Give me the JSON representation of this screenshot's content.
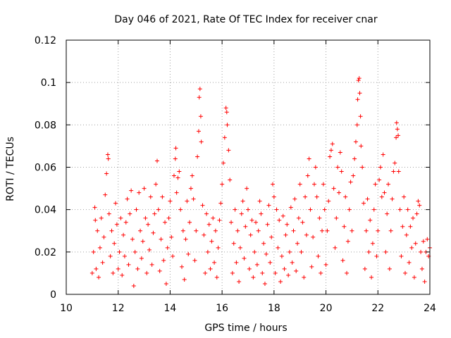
{
  "chart_data": {
    "type": "scatter",
    "title": "Day 046 of 2021, Rate Of TEC Index for receiver cnar",
    "xlabel": "GPS time / hours",
    "ylabel": "ROTI / TECUs",
    "xlim": [
      10,
      24
    ],
    "ylim": [
      0,
      0.12
    ],
    "xticks": [
      10,
      12,
      14,
      16,
      18,
      20,
      22,
      24
    ],
    "xtick_labels": [
      "10",
      "12",
      "14",
      "16",
      "18",
      "20",
      "22",
      "24"
    ],
    "yticks": [
      0,
      0.02,
      0.04,
      0.06,
      0.08,
      0.1,
      0.12
    ],
    "ytick_labels": [
      "0",
      "0.02",
      "0.04",
      "0.06",
      "0.08",
      "0.1",
      "0.12"
    ],
    "grid": true,
    "marker": "plus",
    "color": "#ff0000",
    "series": [
      {
        "points": [
          [
            11.0,
            0.01
          ],
          [
            11.05,
            0.02
          ],
          [
            11.1,
            0.041
          ],
          [
            11.12,
            0.035
          ],
          [
            11.15,
            0.012
          ],
          [
            11.2,
            0.03
          ],
          [
            11.25,
            0.008
          ],
          [
            11.3,
            0.022
          ],
          [
            11.35,
            0.036
          ],
          [
            11.4,
            0.015
          ],
          [
            11.45,
            0.027
          ],
          [
            11.5,
            0.047
          ],
          [
            11.55,
            0.057
          ],
          [
            11.6,
            0.066
          ],
          [
            11.62,
            0.064
          ],
          [
            11.65,
            0.038
          ],
          [
            11.7,
            0.018
          ],
          [
            11.75,
            0.03
          ],
          [
            11.8,
            0.01
          ],
          [
            11.85,
            0.024
          ],
          [
            11.9,
            0.043
          ],
          [
            11.95,
            0.033
          ],
          [
            12.0,
            0.012
          ],
          [
            12.05,
            0.02
          ],
          [
            12.1,
            0.036
          ],
          [
            12.15,
            0.009
          ],
          [
            12.2,
            0.028
          ],
          [
            12.25,
            0.018
          ],
          [
            12.3,
            0.034
          ],
          [
            12.35,
            0.045
          ],
          [
            12.4,
            0.014
          ],
          [
            12.45,
            0.038
          ],
          [
            12.5,
            0.049
          ],
          [
            12.55,
            0.026
          ],
          [
            12.6,
            0.004
          ],
          [
            12.65,
            0.02
          ],
          [
            12.7,
            0.04
          ],
          [
            12.75,
            0.012
          ],
          [
            12.8,
            0.048
          ],
          [
            12.85,
            0.03
          ],
          [
            12.9,
            0.017
          ],
          [
            12.95,
            0.025
          ],
          [
            13.0,
            0.05
          ],
          [
            13.05,
            0.036
          ],
          [
            13.1,
            0.01
          ],
          [
            13.15,
            0.033
          ],
          [
            13.2,
            0.021
          ],
          [
            13.25,
            0.046
          ],
          [
            13.3,
            0.014
          ],
          [
            13.35,
            0.029
          ],
          [
            13.4,
            0.038
          ],
          [
            13.45,
            0.052
          ],
          [
            13.5,
            0.063
          ],
          [
            13.55,
            0.04
          ],
          [
            13.6,
            0.011
          ],
          [
            13.65,
            0.026
          ],
          [
            13.7,
            0.046
          ],
          [
            13.75,
            0.016
          ],
          [
            13.8,
            0.034
          ],
          [
            13.85,
            0.005
          ],
          [
            13.9,
            0.022
          ],
          [
            13.95,
            0.036
          ],
          [
            14.0,
            0.044
          ],
          [
            14.05,
            0.027
          ],
          [
            14.1,
            0.018
          ],
          [
            14.15,
            0.056
          ],
          [
            14.2,
            0.064
          ],
          [
            14.22,
            0.069
          ],
          [
            14.25,
            0.048
          ],
          [
            14.3,
            0.055
          ],
          [
            14.35,
            0.058
          ],
          [
            14.4,
            0.04
          ],
          [
            14.45,
            0.013
          ],
          [
            14.5,
            0.03
          ],
          [
            14.55,
            0.007
          ],
          [
            14.6,
            0.026
          ],
          [
            14.65,
            0.044
          ],
          [
            14.7,
            0.019
          ],
          [
            14.75,
            0.034
          ],
          [
            14.8,
            0.05
          ],
          [
            14.85,
            0.056
          ],
          [
            14.9,
            0.045
          ],
          [
            14.95,
            0.016
          ],
          [
            15.0,
            0.03
          ],
          [
            15.05,
            0.065
          ],
          [
            15.1,
            0.077
          ],
          [
            15.12,
            0.093
          ],
          [
            15.15,
            0.097
          ],
          [
            15.18,
            0.084
          ],
          [
            15.2,
            0.072
          ],
          [
            15.25,
            0.042
          ],
          [
            15.3,
            0.028
          ],
          [
            15.35,
            0.01
          ],
          [
            15.4,
            0.038
          ],
          [
            15.45,
            0.02
          ],
          [
            15.5,
            0.033
          ],
          [
            15.55,
            0.012
          ],
          [
            15.6,
            0.025
          ],
          [
            15.65,
            0.036
          ],
          [
            15.7,
            0.015
          ],
          [
            15.75,
            0.03
          ],
          [
            15.8,
            0.008
          ],
          [
            15.85,
            0.022
          ],
          [
            15.9,
            0.035
          ],
          [
            15.95,
            0.043
          ],
          [
            16.0,
            0.052
          ],
          [
            16.05,
            0.062
          ],
          [
            16.1,
            0.074
          ],
          [
            16.15,
            0.088
          ],
          [
            16.18,
            0.086
          ],
          [
            16.2,
            0.08
          ],
          [
            16.25,
            0.068
          ],
          [
            16.3,
            0.054
          ],
          [
            16.35,
            0.034
          ],
          [
            16.4,
            0.01
          ],
          [
            16.45,
            0.024
          ],
          [
            16.5,
            0.04
          ],
          [
            16.55,
            0.015
          ],
          [
            16.6,
            0.03
          ],
          [
            16.65,
            0.006
          ],
          [
            16.7,
            0.022
          ],
          [
            16.75,
            0.038
          ],
          [
            16.8,
            0.044
          ],
          [
            16.85,
            0.017
          ],
          [
            16.9,
            0.032
          ],
          [
            16.95,
            0.05
          ],
          [
            17.0,
            0.04
          ],
          [
            17.05,
            0.012
          ],
          [
            17.1,
            0.028
          ],
          [
            17.15,
            0.035
          ],
          [
            17.2,
            0.008
          ],
          [
            17.25,
            0.02
          ],
          [
            17.3,
            0.034
          ],
          [
            17.35,
            0.014
          ],
          [
            17.4,
            0.03
          ],
          [
            17.45,
            0.044
          ],
          [
            17.5,
            0.038
          ],
          [
            17.55,
            0.01
          ],
          [
            17.6,
            0.024
          ],
          [
            17.65,
            0.005
          ],
          [
            17.7,
            0.019
          ],
          [
            17.75,
            0.033
          ],
          [
            17.8,
            0.042
          ],
          [
            17.85,
            0.015
          ],
          [
            17.9,
            0.027
          ],
          [
            17.95,
            0.052
          ],
          [
            18.0,
            0.046
          ],
          [
            18.05,
            0.01
          ],
          [
            18.1,
            0.04
          ],
          [
            18.15,
            0.022
          ],
          [
            18.2,
            0.035
          ],
          [
            18.25,
            0.006
          ],
          [
            18.3,
            0.018
          ],
          [
            18.35,
            0.037
          ],
          [
            18.4,
            0.012
          ],
          [
            18.45,
            0.028
          ],
          [
            18.5,
            0.033
          ],
          [
            18.55,
            0.009
          ],
          [
            18.6,
            0.02
          ],
          [
            18.65,
            0.041
          ],
          [
            18.7,
            0.015
          ],
          [
            18.75,
            0.03
          ],
          [
            18.8,
            0.045
          ],
          [
            18.85,
            0.011
          ],
          [
            18.9,
            0.024
          ],
          [
            18.95,
            0.036
          ],
          [
            19.0,
            0.052
          ],
          [
            19.05,
            0.02
          ],
          [
            19.1,
            0.034
          ],
          [
            19.15,
            0.008
          ],
          [
            19.2,
            0.046
          ],
          [
            19.25,
            0.028
          ],
          [
            19.3,
            0.056
          ],
          [
            19.35,
            0.064
          ],
          [
            19.4,
            0.04
          ],
          [
            19.45,
            0.013
          ],
          [
            19.5,
            0.027
          ],
          [
            19.55,
            0.052
          ],
          [
            19.6,
            0.06
          ],
          [
            19.65,
            0.046
          ],
          [
            19.7,
            0.018
          ],
          [
            19.75,
            0.036
          ],
          [
            19.8,
            0.01
          ],
          [
            19.85,
            0.03
          ],
          [
            19.9,
            0.052
          ],
          [
            19.95,
            0.04
          ],
          [
            20.0,
            0.014
          ],
          [
            20.05,
            0.03
          ],
          [
            20.1,
            0.044
          ],
          [
            20.15,
            0.065
          ],
          [
            20.2,
            0.068
          ],
          [
            20.25,
            0.071
          ],
          [
            20.3,
            0.05
          ],
          [
            20.35,
            0.022
          ],
          [
            20.4,
            0.036
          ],
          [
            20.45,
            0.06
          ],
          [
            20.5,
            0.048
          ],
          [
            20.55,
            0.067
          ],
          [
            20.6,
            0.058
          ],
          [
            20.65,
            0.016
          ],
          [
            20.7,
            0.032
          ],
          [
            20.75,
            0.046
          ],
          [
            20.8,
            0.01
          ],
          [
            20.85,
            0.025
          ],
          [
            20.9,
            0.04
          ],
          [
            20.95,
            0.053
          ],
          [
            21.0,
            0.03
          ],
          [
            21.05,
            0.056
          ],
          [
            21.1,
            0.064
          ],
          [
            21.15,
            0.072
          ],
          [
            21.2,
            0.08
          ],
          [
            21.22,
            0.092
          ],
          [
            21.25,
            0.101
          ],
          [
            21.28,
            0.102
          ],
          [
            21.3,
            0.095
          ],
          [
            21.33,
            0.084
          ],
          [
            21.35,
            0.07
          ],
          [
            21.4,
            0.06
          ],
          [
            21.45,
            0.043
          ],
          [
            21.5,
            0.012
          ],
          [
            21.55,
            0.03
          ],
          [
            21.6,
            0.045
          ],
          [
            21.65,
            0.02
          ],
          [
            21.7,
            0.035
          ],
          [
            21.75,
            0.008
          ],
          [
            21.8,
            0.024
          ],
          [
            21.85,
            0.04
          ],
          [
            21.9,
            0.052
          ],
          [
            21.95,
            0.018
          ],
          [
            22.0,
            0.03
          ],
          [
            22.05,
            0.054
          ],
          [
            22.1,
            0.06
          ],
          [
            22.15,
            0.046
          ],
          [
            22.2,
            0.066
          ],
          [
            22.25,
            0.048
          ],
          [
            22.3,
            0.02
          ],
          [
            22.35,
            0.038
          ],
          [
            22.4,
            0.052
          ],
          [
            22.45,
            0.012
          ],
          [
            22.5,
            0.03
          ],
          [
            22.55,
            0.045
          ],
          [
            22.6,
            0.058
          ],
          [
            22.65,
            0.062
          ],
          [
            22.7,
            0.074
          ],
          [
            22.72,
            0.081
          ],
          [
            22.75,
            0.078
          ],
          [
            22.78,
            0.075
          ],
          [
            22.8,
            0.058
          ],
          [
            22.85,
            0.04
          ],
          [
            22.9,
            0.018
          ],
          [
            22.95,
            0.032
          ],
          [
            23.0,
            0.046
          ],
          [
            23.05,
            0.01
          ],
          [
            23.1,
            0.028
          ],
          [
            23.15,
            0.04
          ],
          [
            23.2,
            0.015
          ],
          [
            23.25,
            0.032
          ],
          [
            23.3,
            0.022
          ],
          [
            23.35,
            0.036
          ],
          [
            23.4,
            0.008
          ],
          [
            23.45,
            0.024
          ],
          [
            23.5,
            0.038
          ],
          [
            23.55,
            0.044
          ],
          [
            23.6,
            0.042
          ],
          [
            23.65,
            0.02
          ],
          [
            23.7,
            0.012
          ],
          [
            23.75,
            0.025
          ],
          [
            23.8,
            0.006
          ],
          [
            23.85,
            0.02
          ],
          [
            23.9,
            0.026
          ],
          [
            23.95,
            0.018
          ],
          [
            24.0,
            0.022
          ]
        ]
      }
    ]
  }
}
